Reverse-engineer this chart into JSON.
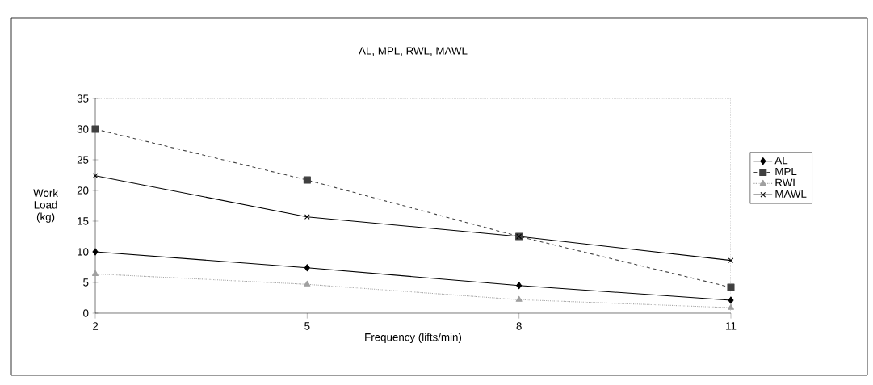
{
  "chart_data": {
    "type": "line",
    "title": "AL, MPL, RWL, MAWL",
    "xlabel": "Frequency (lifts/min)",
    "ylabel": "Work Load (kg)",
    "x": [
      2,
      5,
      8,
      11
    ],
    "series": [
      {
        "name": "AL",
        "color": "#000000",
        "values": [
          10,
          7.4,
          4.5,
          2.1
        ],
        "marker": "diamond",
        "line_style": "solid"
      },
      {
        "name": "MPL",
        "color": "#404040",
        "values": [
          30,
          21.7,
          12.5,
          4.2
        ],
        "marker": "square",
        "line_style": "dashed"
      },
      {
        "name": "RWL",
        "color": "#a0a0a0",
        "values": [
          6.4,
          4.7,
          2.2,
          0.9
        ],
        "marker": "triangle",
        "line_style": "dotted"
      },
      {
        "name": "MAWL",
        "color": "#000000",
        "values": [
          22.4,
          15.7,
          12.5,
          8.6
        ],
        "marker": "cross",
        "line_style": "solid"
      }
    ],
    "xlim": [
      2,
      11
    ],
    "xticks": [
      2,
      5,
      8,
      11
    ],
    "ylim": [
      0,
      35
    ],
    "yticks": [
      0,
      5,
      10,
      15,
      20,
      25,
      30,
      35
    ],
    "grid": false,
    "legend": "right"
  }
}
